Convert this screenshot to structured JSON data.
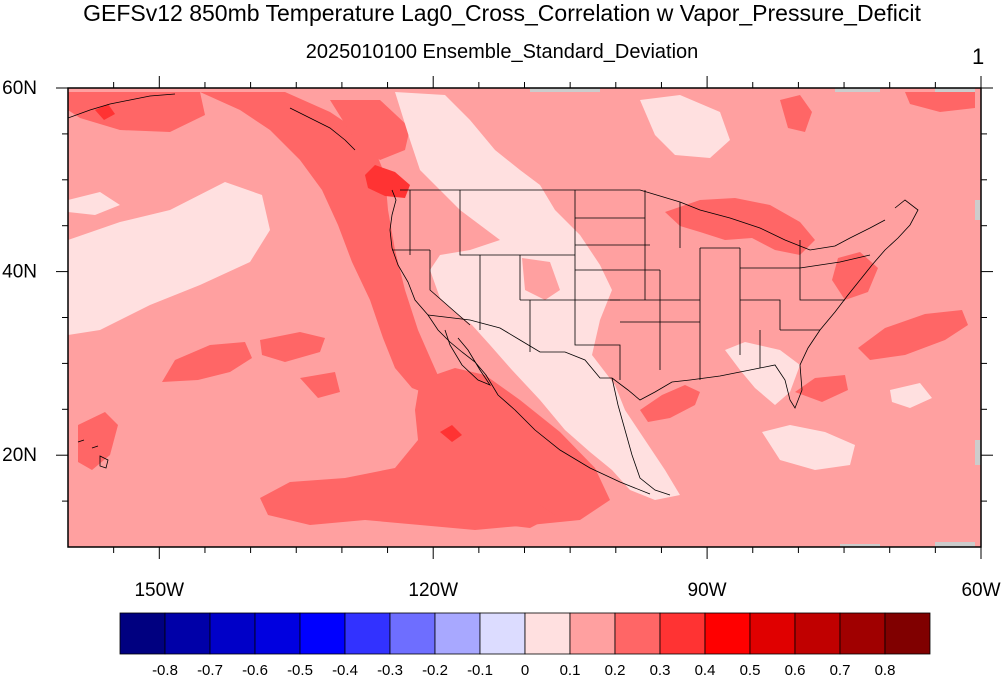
{
  "figure": {
    "title": "GEFSv12 850mb Temperature Lag0_Cross_Correlation w Vapor_Pressure_Deficit",
    "subtitle": "2025010100 Ensemble_Standard_Deviation",
    "panel_number": "1"
  },
  "map": {
    "projection": "cylindrical equidistant",
    "domain": {
      "lon_min": -160,
      "lon_max": -60,
      "lat_min": 10,
      "lat_max": 60
    },
    "lon_ticks": [
      {
        "value": -150,
        "label": "150W"
      },
      {
        "value": -120,
        "label": "120W"
      },
      {
        "value": -90,
        "label": "90W"
      },
      {
        "value": -60,
        "label": "60W"
      }
    ],
    "lat_ticks": [
      {
        "value": 60,
        "label": "60N"
      },
      {
        "value": 40,
        "label": "40N"
      },
      {
        "value": 20,
        "label": "20N"
      }
    ],
    "background_level": "0.1 to 0.2"
  },
  "colorbar": {
    "levels": [
      "-0.8",
      "-0.7",
      "-0.6",
      "-0.5",
      "-0.4",
      "-0.3",
      "-0.2",
      "-0.1",
      "0",
      "0.1",
      "0.2",
      "0.3",
      "0.4",
      "0.5",
      "0.6",
      "0.7",
      "0.8"
    ],
    "colors": [
      "#000080",
      "#0000a8",
      "#0000c8",
      "#0000e0",
      "#0000ff",
      "#3232ff",
      "#6e6eff",
      "#a8a8ff",
      "#dcdcff",
      "#ffe0e0",
      "#ffa0a0",
      "#ff6666",
      "#ff3333",
      "#ff0000",
      "#e00000",
      "#c00000",
      "#a00000",
      "#800000"
    ]
  },
  "chart_data": {
    "type": "heatmap",
    "title": "GEFSv12 850mb Temperature Lag0_Cross_Correlation w Vapor_Pressure_Deficit",
    "subtitle": "2025010100 Ensemble_Standard_Deviation",
    "x_range": [
      -160,
      -60
    ],
    "y_range": [
      10,
      60
    ],
    "regions": [
      {
        "label": "0 to 0.1",
        "description": "Rocky Mountains, Great Basin, southwest US, central Mexico, Gulf of California area"
      },
      {
        "label": "0 to 0.1",
        "description": "eastern Pacific near 40N 145W"
      },
      {
        "label": "0.1 to 0.2",
        "description": "background over most of domain"
      },
      {
        "label": "0.2 to 0.3",
        "description": "Pacific coast 30-55N, Gulf of Alaska, eastern tropical Pacific, Great Lakes, western Atlantic patches"
      },
      {
        "label": "0.3 to 0.4",
        "description": "Pacific Northwest near 50N 123W, tropical Pacific near 17N 118W"
      }
    ]
  }
}
